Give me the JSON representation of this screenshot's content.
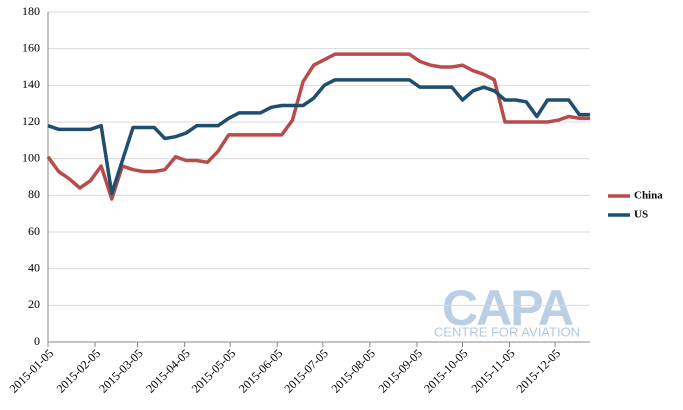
{
  "chart_data": {
    "type": "line",
    "x": [
      "2015-01-05",
      "2015-01-12",
      "2015-01-19",
      "2015-01-26",
      "2015-02-02",
      "2015-02-09",
      "2015-02-16",
      "2015-02-23",
      "2015-03-02",
      "2015-03-09",
      "2015-03-16",
      "2015-03-23",
      "2015-03-30",
      "2015-04-06",
      "2015-04-13",
      "2015-04-20",
      "2015-04-27",
      "2015-05-04",
      "2015-05-11",
      "2015-05-18",
      "2015-05-25",
      "2015-06-01",
      "2015-06-08",
      "2015-06-15",
      "2015-06-22",
      "2015-06-29",
      "2015-07-06",
      "2015-07-13",
      "2015-07-20",
      "2015-07-27",
      "2015-08-03",
      "2015-08-10",
      "2015-08-17",
      "2015-08-24",
      "2015-08-31",
      "2015-09-07",
      "2015-09-14",
      "2015-09-21",
      "2015-09-28",
      "2015-10-05",
      "2015-10-12",
      "2015-10-19",
      "2015-10-26",
      "2015-11-02",
      "2015-11-09",
      "2015-11-16",
      "2015-11-23",
      "2015-11-30",
      "2015-12-07",
      "2015-12-14",
      "2015-12-21",
      "2015-12-28"
    ],
    "series": [
      {
        "name": "China",
        "color": "#b84c4a",
        "values": [
          101,
          93,
          89,
          84,
          88,
          96,
          78,
          96,
          94,
          93,
          93,
          94,
          101,
          99,
          99,
          98,
          104,
          113,
          113,
          113,
          113,
          113,
          113,
          121,
          142,
          151,
          154,
          157,
          157,
          157,
          157,
          157,
          157,
          157,
          157,
          153,
          151,
          150,
          150,
          151,
          148,
          146,
          143,
          120,
          120,
          120,
          120,
          120,
          121,
          123,
          122,
          122
        ]
      },
      {
        "name": "US",
        "color": "#1f4e6e",
        "values": [
          118,
          116,
          116,
          116,
          116,
          118,
          81,
          99,
          117,
          117,
          117,
          111,
          112,
          114,
          118,
          118,
          118,
          122,
          125,
          125,
          125,
          128,
          129,
          129,
          129,
          133,
          140,
          143,
          143,
          143,
          143,
          143,
          143,
          143,
          143,
          139,
          139,
          139,
          139,
          132,
          137,
          139,
          137,
          132,
          132,
          131,
          123,
          132,
          132,
          132,
          124,
          124
        ]
      }
    ],
    "xlim": [
      "2015-01-05",
      "2015-12-28"
    ],
    "xticks": [
      "2015-01-05",
      "2015-02-05",
      "2015-03-05",
      "2015-04-05",
      "2015-05-05",
      "2015-06-05",
      "2015-07-05",
      "2015-08-05",
      "2015-09-05",
      "2015-10-05",
      "2015-11-05",
      "2015-12-05"
    ],
    "ylim": [
      0,
      180
    ],
    "yticks": [
      0,
      20,
      40,
      60,
      80,
      100,
      120,
      140,
      160,
      180
    ],
    "grid": true,
    "legend": "right",
    "watermark": {
      "logo": "CAPA",
      "tagline": "CENTRE FOR AVIATION"
    }
  }
}
